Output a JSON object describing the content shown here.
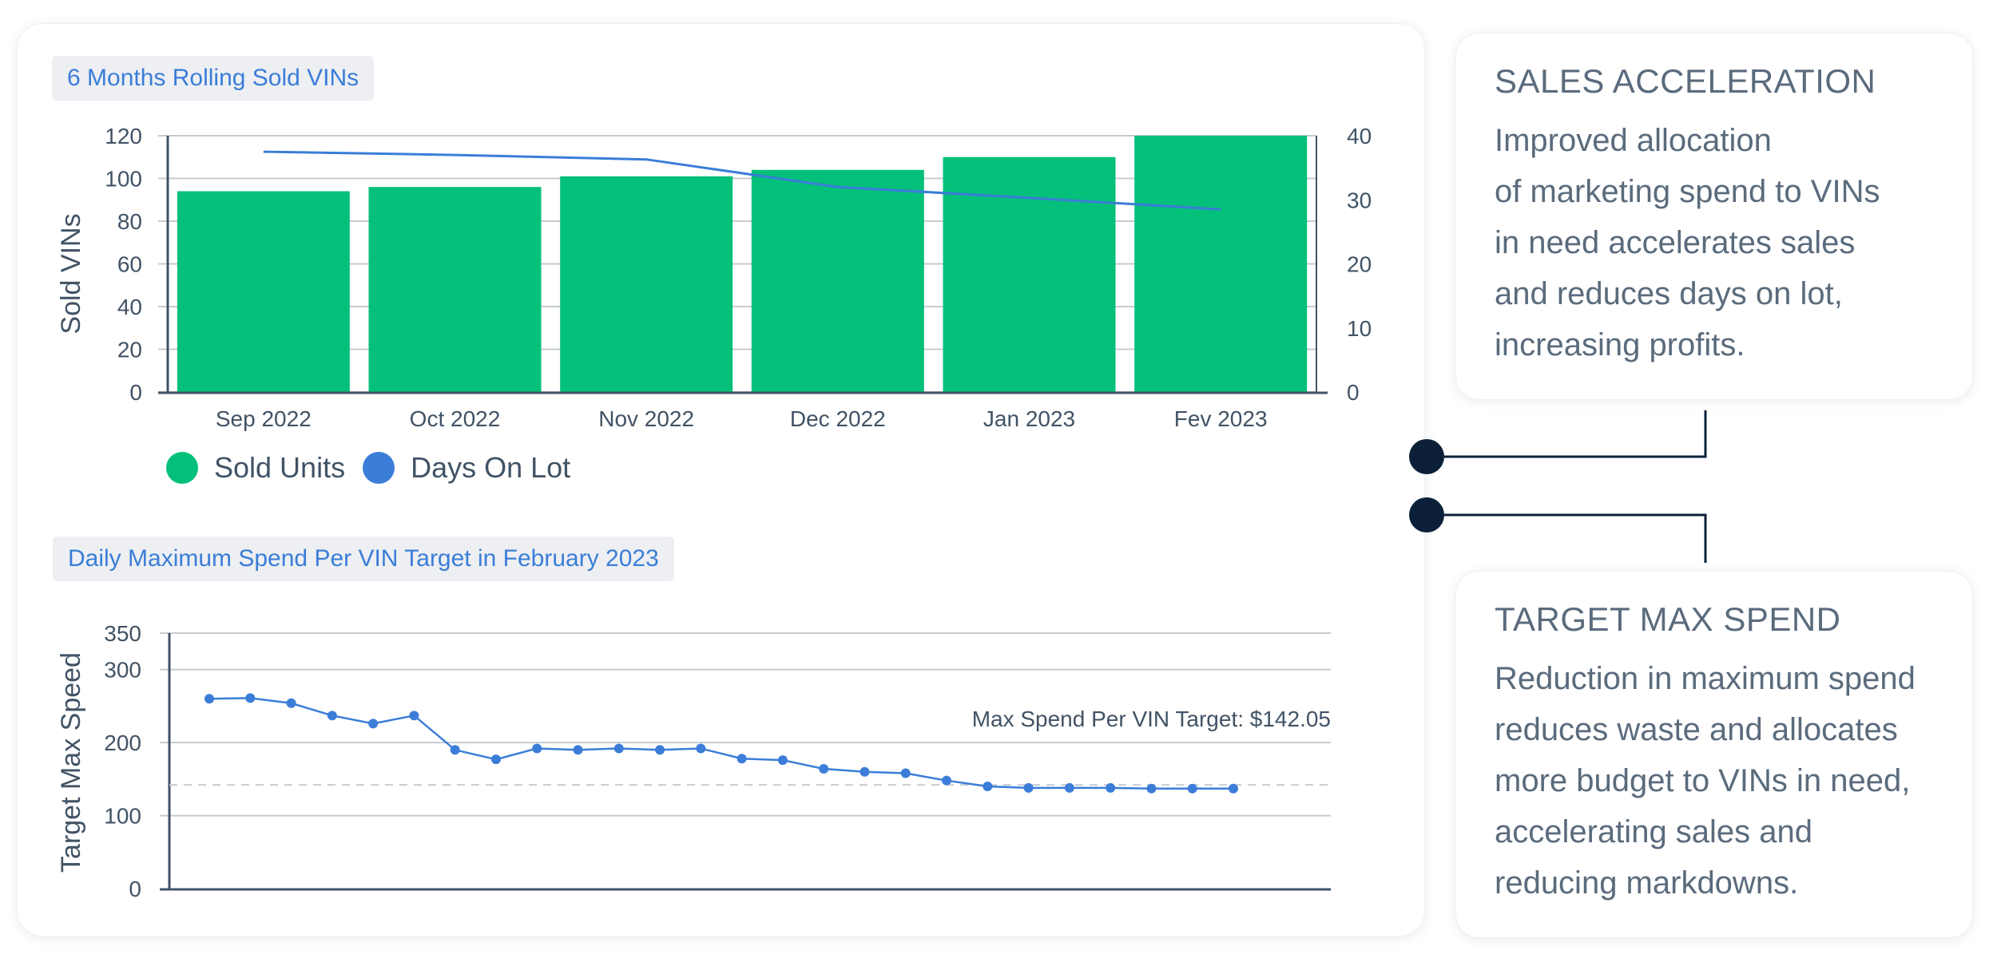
{
  "colors": {
    "bar": "#05c07a",
    "line": "#3b7dd8",
    "axis": "#415365",
    "grid": "#c5cbd1",
    "connector": "#0b2038",
    "dashed": "#c7cdd2"
  },
  "chart_data": [
    {
      "type": "bar",
      "title": "6 Months Rolling Sold VINs",
      "categories": [
        "Sep 2022",
        "Oct 2022",
        "Nov 2022",
        "Dec 2022",
        "Jan 2023",
        "Fev 2023"
      ],
      "ylabel": "Sold VINs",
      "ylim": [
        0,
        120
      ],
      "yticks": [
        "120",
        "100",
        "80",
        "60",
        "40",
        "20",
        "0"
      ],
      "y2lim": [
        0,
        40
      ],
      "y2ticks": [
        "40",
        "30",
        "20",
        "10",
        "0"
      ],
      "grid": true,
      "legend_position": "bottom-left",
      "series": [
        {
          "name": "Sold Units",
          "kind": "bar",
          "axis": "left",
          "color": "#05c07a",
          "values": [
            94,
            96,
            101,
            104,
            110,
            122
          ]
        },
        {
          "name": "Days On Lot",
          "kind": "line",
          "axis": "right",
          "color": "#3b7dd8",
          "values": [
            37.5,
            37.0,
            36.3,
            32.0,
            30.3,
            28.5
          ]
        }
      ]
    },
    {
      "type": "line",
      "title": "Daily Maximum Spend Per VIN Target in February 2023",
      "ylabel": "Target Max Speed",
      "xlabel": "",
      "ylim": [
        0,
        350
      ],
      "yticks": [
        "350",
        "300",
        "200",
        "100",
        "0"
      ],
      "grid": true,
      "annotation": "Max Spend Per VIN Target: $142.05",
      "target_value": 142.05,
      "series": [
        {
          "kind": "line",
          "color": "#3b7dd8",
          "values": [
            260,
            261,
            254,
            237,
            226,
            237,
            190,
            177,
            192,
            190,
            192,
            190,
            192,
            178,
            176,
            164,
            160,
            158,
            148,
            140,
            138,
            138,
            138,
            137,
            137,
            137
          ]
        }
      ]
    }
  ],
  "info_cards": [
    {
      "title": "SALES ACCELERATION",
      "body": "Improved allocation\nof marketing spend to VINs\nin need accelerates sales\nand reduces days on lot,\nincreasing profits."
    },
    {
      "title": "TARGET MAX SPEND",
      "body": "Reduction in maximum spend\nreduces waste and allocates\nmore budget to VINs in need,\naccelerating sales and\nreducing markdowns."
    }
  ]
}
